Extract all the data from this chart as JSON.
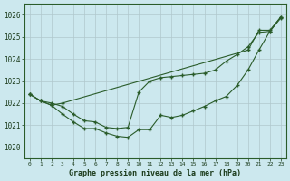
{
  "xlabel": "Graphe pression niveau de la mer (hPa)",
  "ylim": [
    1019.5,
    1026.5
  ],
  "xlim": [
    -0.5,
    23.5
  ],
  "yticks": [
    1020,
    1021,
    1022,
    1023,
    1024,
    1025,
    1026
  ],
  "xticks": [
    0,
    1,
    2,
    3,
    4,
    5,
    6,
    7,
    8,
    9,
    10,
    11,
    12,
    13,
    14,
    15,
    16,
    17,
    18,
    19,
    20,
    21,
    22,
    23
  ],
  "bg_color": "#cce8ee",
  "grid_color": "#b0c8cc",
  "line_color": "#2a5c2a",
  "line1_x": [
    0,
    1,
    2,
    3,
    20,
    21,
    22,
    23
  ],
  "line1_y": [
    1022.4,
    1022.1,
    1021.9,
    1022.0,
    1024.4,
    1025.3,
    1025.3,
    1025.9
  ],
  "line2_x": [
    0,
    1,
    2,
    3,
    4,
    5,
    6,
    7,
    8,
    9,
    10,
    11,
    12,
    13,
    14,
    15,
    16,
    17,
    18,
    19,
    20,
    21,
    22,
    23
  ],
  "line2_y": [
    1022.4,
    1022.1,
    1021.9,
    1021.5,
    1021.15,
    1020.85,
    1020.85,
    1020.65,
    1020.5,
    1020.45,
    1020.8,
    1020.8,
    1021.45,
    1021.35,
    1021.45,
    1021.65,
    1021.85,
    1022.1,
    1022.3,
    1022.8,
    1023.5,
    1024.4,
    1025.25,
    1025.9
  ],
  "line3_x": [
    0,
    1,
    2,
    3,
    4,
    5,
    6,
    7,
    8,
    9,
    10,
    11,
    12,
    13,
    14,
    15,
    16,
    17,
    18,
    19,
    20,
    21,
    22,
    23
  ],
  "line3_y": [
    1022.4,
    1022.1,
    1022.0,
    1021.85,
    1021.5,
    1021.2,
    1021.15,
    1020.9,
    1020.85,
    1020.9,
    1022.5,
    1023.0,
    1023.15,
    1023.2,
    1023.25,
    1023.3,
    1023.35,
    1023.5,
    1023.9,
    1024.2,
    1024.55,
    1025.2,
    1025.25,
    1025.85
  ]
}
